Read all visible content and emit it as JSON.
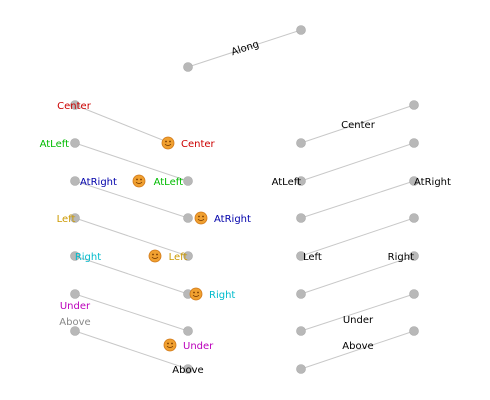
{
  "colors": {
    "line": "#c8c8c8",
    "node": "#b8b8b8",
    "node_stroke": "#a8a8a8",
    "face": "#f0a030",
    "face_ring": "#d07818",
    "black": "#000000",
    "red": "#cc0000",
    "green": "#00bb00",
    "blue": "#0000aa",
    "orange": "#cc9900",
    "cyan": "#00bbcc",
    "magenta": "#bb00bb",
    "gray": "#888888"
  },
  "labels": {
    "along": "Along",
    "left_col": {
      "center_a": "Center",
      "center_b": "Center",
      "atleft_a": "AtLeft",
      "atleft_b": "AtLeft",
      "atright_a": "AtRight",
      "atright_b": "AtRight",
      "left_a": "Left",
      "left_b": "Left",
      "right_a": "Right",
      "right_b": "Right",
      "under_a": "Under",
      "under_b": "Under",
      "above_a": "Above",
      "above_b": "Above"
    },
    "right_col": {
      "center": "Center",
      "atleft": "AtLeft",
      "atright": "AtRight",
      "left": "Left",
      "right": "Right",
      "under": "Under",
      "above": "Above"
    }
  }
}
